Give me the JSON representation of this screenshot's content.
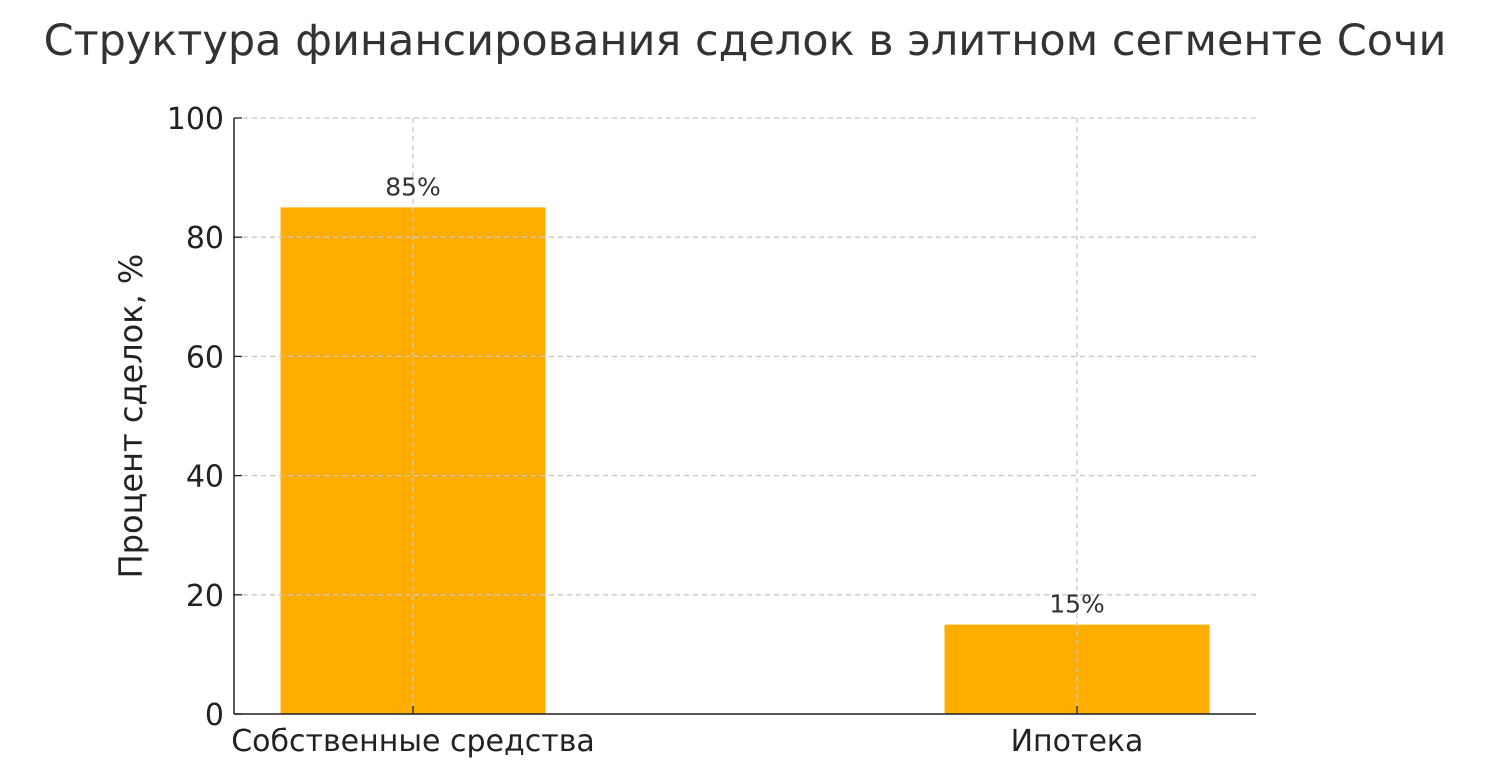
{
  "chart_data": {
    "type": "bar",
    "title": "Структура финансирования сделок в элитном сегменте Сочи",
    "xlabel": "",
    "ylabel": "Процент сделок, %",
    "categories": [
      "Собственные средства",
      "Ипотека"
    ],
    "values": [
      85,
      15
    ],
    "data_labels": [
      "85%",
      "15%"
    ],
    "ylim": [
      0,
      100
    ],
    "yticks": [
      0,
      20,
      40,
      60,
      80,
      100
    ],
    "grid": true,
    "bar_color": "#FFAE00"
  }
}
